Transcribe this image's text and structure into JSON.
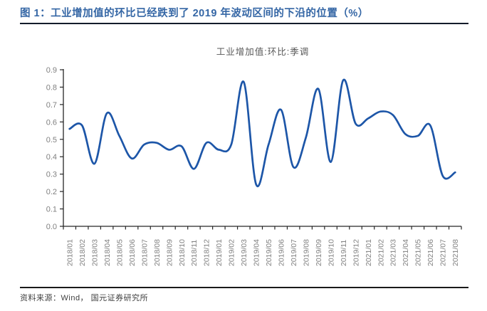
{
  "figure": {
    "title": "图 1：工业增加值的环比已经跌到了 2019 年波动区间的下沿的位置（%）",
    "source": "资料来源：Wind， 国元证券研究所"
  },
  "chart_data": {
    "type": "line",
    "title": "工业增加值:环比:季调",
    "x": [
      "2018/01",
      "2018/02",
      "2018/03",
      "2018/04",
      "2018/05",
      "2018/06",
      "2018/07",
      "2018/08",
      "2018/09",
      "2018/10",
      "2018/11",
      "2018/12",
      "2019/01",
      "2019/02",
      "2019/03",
      "2019/04",
      "2019/05",
      "2019/06",
      "2019/07",
      "2019/08",
      "2019/09",
      "2019/10",
      "2019/11",
      "2019/12",
      "2021/01",
      "2021/02",
      "2021/03",
      "2021/04",
      "2021/05",
      "2021/06",
      "2021/07",
      "2021/08"
    ],
    "series": [
      {
        "name": "工业增加值:环比:季调",
        "values": [
          0.56,
          0.58,
          0.36,
          0.65,
          0.52,
          0.39,
          0.47,
          0.48,
          0.44,
          0.46,
          0.33,
          0.48,
          0.44,
          0.47,
          0.83,
          0.24,
          0.47,
          0.67,
          0.34,
          0.51,
          0.79,
          0.37,
          0.84,
          0.59,
          0.62,
          0.66,
          0.64,
          0.53,
          0.52,
          0.58,
          0.29,
          0.31
        ]
      }
    ],
    "ylim": [
      0.0,
      0.9
    ],
    "ytick_step": 0.1,
    "ytick_labels": [
      "0.0",
      "0.1",
      "0.2",
      "0.3",
      "0.4",
      "0.5",
      "0.6",
      "0.7",
      "0.8",
      "0.9"
    ],
    "grid": false,
    "legend": "none",
    "smooth": true
  },
  "colors": {
    "line": "#1d56a8",
    "axis": "#262626",
    "tick_label": "#808080",
    "title": "#3466a5",
    "subtitle": "#595959",
    "rule": "#131c2b",
    "source": "#3f3f3f"
  }
}
